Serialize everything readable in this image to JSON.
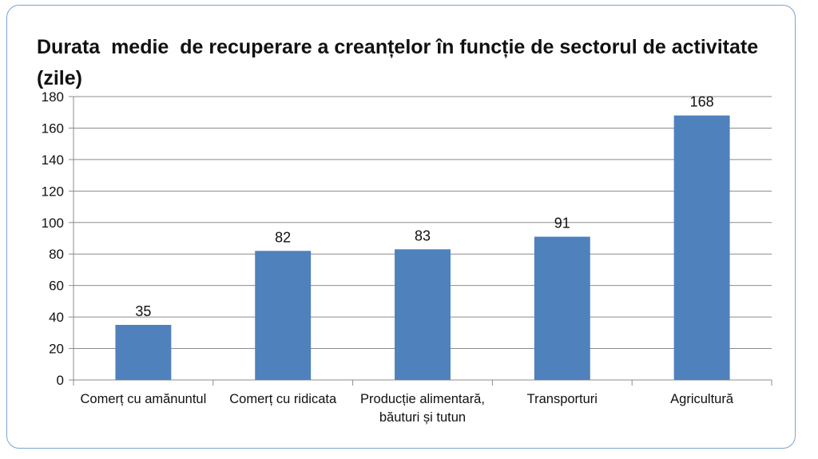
{
  "chart_data": {
    "type": "bar",
    "title": "Durata  medie  de recuperare a creanțelor în funcție de sectorul de activitate   (zile)",
    "categories": [
      "Comerț cu amănuntul",
      "Comerț cu ridicata",
      "Producție alimentară, băuturi și tutun",
      "Transporturi",
      "Agricultură"
    ],
    "category_lines": [
      [
        "Comerț cu amănuntul"
      ],
      [
        "Comerț cu ridicata"
      ],
      [
        "Producție alimentară,",
        "băuturi și tutun"
      ],
      [
        "Transporturi"
      ],
      [
        "Agricultură"
      ]
    ],
    "values": [
      35,
      82,
      83,
      91,
      168
    ],
    "ylim": [
      0,
      180
    ],
    "yticks": [
      0,
      20,
      40,
      60,
      80,
      100,
      120,
      140,
      160,
      180
    ],
    "grid": true,
    "legend": "none",
    "xlabel": "",
    "ylabel": "",
    "bar_color": "#4f81bd",
    "grid_color": "#8c8c8c"
  }
}
